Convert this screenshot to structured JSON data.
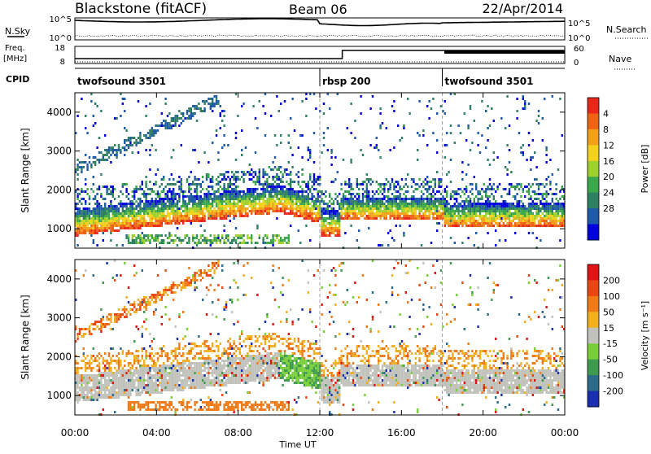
{
  "header": {
    "station": "Blackstone (fitACF)",
    "beam": "Beam 06",
    "date": "22/Apr/2014"
  },
  "summary_panel": {
    "nsky_label": "N.Sky",
    "nsearch_label": "N.Search",
    "noise_ticks": [
      "10^5",
      "10^0"
    ],
    "freq_label_1": "Freq.",
    "freq_label_2": "[MHz]",
    "freq_ticks": [
      "18",
      "8"
    ],
    "nave_label": "Nave",
    "nave_ticks": [
      "60",
      "0"
    ],
    "cpid_label": "CPID"
  },
  "cpid_segments": [
    {
      "name": "twofsound 3501",
      "start_h": 0,
      "end_h": 12
    },
    {
      "name": "rbsp 200",
      "start_h": 12,
      "end_h": 18
    },
    {
      "name": "twofsound 3501",
      "start_h": 18,
      "end_h": 24
    }
  ],
  "chart_data": [
    {
      "type": "heatmap",
      "title": "Power",
      "ylabel": "Slant Range [km]",
      "xlabel": "Time UT",
      "xlim": [
        0,
        24
      ],
      "ylim": [
        500,
        4500
      ],
      "x_ticks": [
        "00:00",
        "04:00",
        "08:00",
        "12:00",
        "16:00",
        "20:00",
        "00:00"
      ],
      "y_ticks": [
        1000,
        2000,
        3000,
        4000
      ],
      "colorbar": {
        "label": "Power [dB]",
        "ticks": [
          "4",
          "8",
          "12",
          "16",
          "20",
          "24",
          "28"
        ],
        "colors": [
          "#0000dd",
          "#1e5aa8",
          "#2f8060",
          "#3aa84a",
          "#9ed12e",
          "#f2d21a",
          "#f3a01a",
          "#ee6414",
          "#e8261a"
        ]
      }
    },
    {
      "type": "heatmap",
      "title": "Velocity",
      "ylabel": "Slant Range [km]",
      "xlabel": "Time UT",
      "xlim": [
        0,
        24
      ],
      "ylim": [
        500,
        4500
      ],
      "x_ticks": [
        "00:00",
        "04:00",
        "08:00",
        "12:00",
        "16:00",
        "20:00",
        "00:00"
      ],
      "y_ticks": [
        1000,
        2000,
        3000,
        4000
      ],
      "colorbar": {
        "label": "Velocity [m s⁻¹]",
        "ticks": [
          "200",
          "100",
          "50",
          "15",
          "-15",
          "-50",
          "-100",
          "-200"
        ],
        "colors": [
          "#1a2fb0",
          "#2c6b8a",
          "#3f9a50",
          "#79cf3a",
          "#c2c2bc",
          "#f2b020",
          "#f07a18",
          "#ea4614",
          "#e01414"
        ]
      }
    }
  ]
}
